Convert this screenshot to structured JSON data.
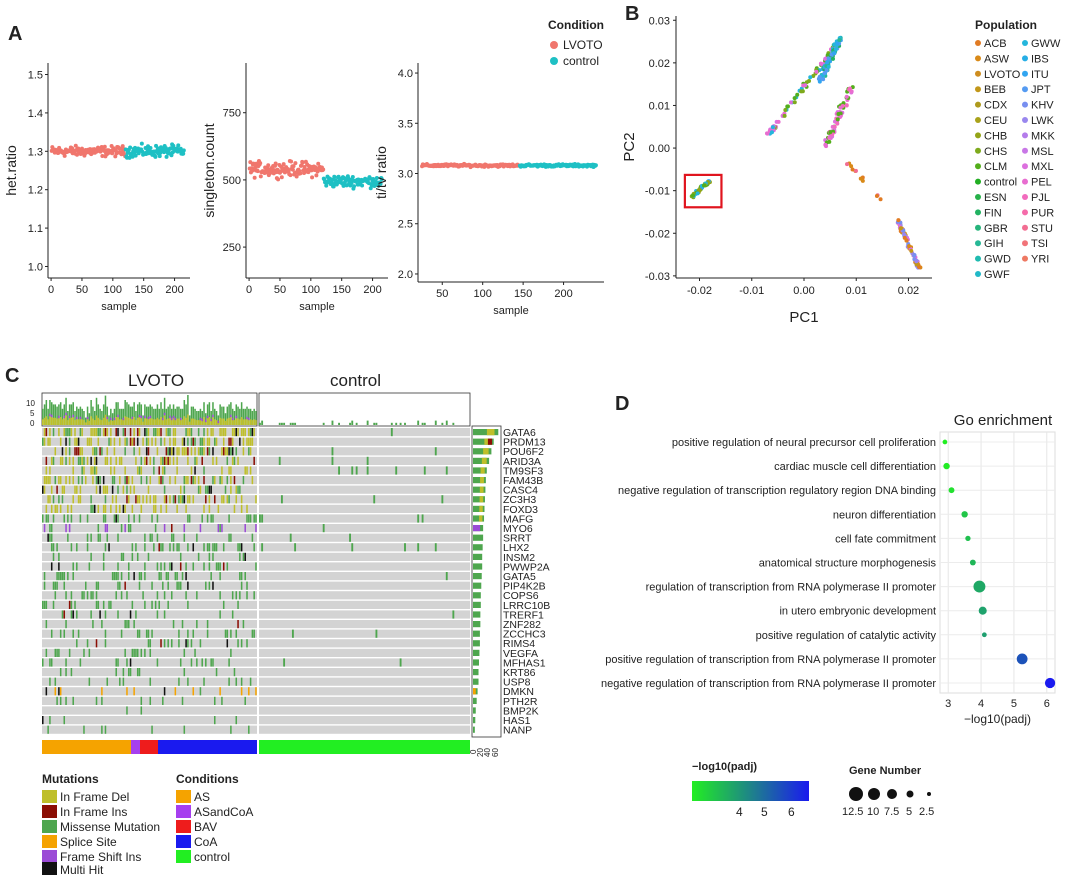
{
  "panel_labels": {
    "a": "A",
    "b": "B",
    "c": "C",
    "d": "D"
  },
  "colors": {
    "lvoto": "#F0766D",
    "control": "#1EC0C4",
    "in_frame_del": "#BFBF2A",
    "in_frame_ins": "#8B0E04",
    "missense": "#4EA64E",
    "splice": "#F5A300",
    "frame_shift": "#9B4BD6",
    "multi_hit": "#111111",
    "AS": "#F5A300",
    "ASandCoA": "#A63FEF",
    "BAV": "#EE1C1C",
    "CoA": "#1A1AEF",
    "control_bar": "#22EE22"
  },
  "panel_a": {
    "legend": {
      "title": "Condition",
      "items": [
        "LVOTO",
        "control"
      ]
    },
    "xlabel": "sample"
  },
  "panel_b": {
    "legend_title": "Population",
    "populations_col1": [
      "ACB",
      "ASW",
      "LVOTO",
      "BEB",
      "CDX",
      "CEU",
      "CHB",
      "CHS",
      "CLM",
      "control",
      "ESN",
      "FIN",
      "GBR",
      "GIH",
      "GWD",
      "GWF"
    ],
    "populations_col2": [
      "GWW",
      "IBS",
      "ITU",
      "JPT",
      "KHV",
      "LWK",
      "MKK",
      "MSL",
      "MXL",
      "PEL",
      "PJL",
      "PUR",
      "STU",
      "TSI",
      "YRI"
    ],
    "colors_col1": [
      "#E17B23",
      "#D98A18",
      "#CE8D1F",
      "#C29719",
      "#AE9A1D",
      "#A9A21A",
      "#94A417",
      "#7EAA1C",
      "#53AE1B",
      "#22AE23",
      "#27B14A",
      "#22B262",
      "#26B47B",
      "#27B896",
      "#20BBB0",
      "#21B9C8"
    ],
    "colors_col2": [
      "#24B6DC",
      "#26AEE6",
      "#31A5F0",
      "#559BF2",
      "#788FF0",
      "#9987EE",
      "#B47CEB",
      "#C877E6",
      "#DC70DE",
      "#E86DD0",
      "#F26BBD",
      "#F56BAA",
      "#F26D92",
      "#F17379",
      "#EE7963"
    ]
  },
  "panel_c": {
    "title_left": "LVOTO",
    "title_right": "control",
    "top_axis_ticks": [
      "10",
      "5",
      "0"
    ],
    "genes": [
      "GATA6",
      "PRDM13",
      "POU6F2",
      "ARID3A",
      "TM9SF3",
      "FAM43B",
      "CASC4",
      "ZC3H3",
      "FOXD3",
      "MAFG",
      "MYO6",
      "SRRT",
      "LHX2",
      "INSM2",
      "PWWP2A",
      "GATA5",
      "PIP4K2B",
      "COPS6",
      "LRRC10B",
      "TRERF1",
      "ZNF282",
      "ZCCHC3",
      "RIMS4",
      "VEGFA",
      "MFHAS1",
      "KRT86",
      "USP8",
      "DMKN",
      "PTH2R",
      "BMP2K",
      "HAS1",
      "NANP"
    ],
    "side_axis_ticks": [
      "0",
      "20",
      "40",
      "60"
    ],
    "mutations_legend": {
      "title": "Mutations",
      "items": [
        "In Frame Del",
        "In Frame Ins",
        "Missense Mutation",
        "Splice Site",
        "Frame Shift Ins",
        "Multi Hit"
      ]
    },
    "conditions_legend": {
      "title": "Conditions",
      "items": [
        "AS",
        "ASandCoA",
        "BAV",
        "CoA",
        "control"
      ]
    }
  },
  "chart_data": [
    {
      "type": "scatter",
      "title": "",
      "xlabel": "sample",
      "ylabel": "het.ratio",
      "xlim": [
        -5,
        225
      ],
      "ylim": [
        0.97,
        1.53
      ],
      "xticks": [
        0,
        50,
        100,
        150,
        200
      ],
      "yticks": [
        1.0,
        1.1,
        1.2,
        1.3,
        1.4,
        1.5
      ],
      "yticklabels": [
        "1.0",
        "1.1",
        "1.2",
        "1.3",
        "1.4",
        "1.5"
      ],
      "series": [
        {
          "name": "LVOTO",
          "x_range": [
            1,
            120
          ],
          "y_center": 1.3,
          "y_spread": 0.012
        },
        {
          "name": "control",
          "x_range": [
            121,
            215
          ],
          "y_center": 1.3,
          "y_spread": 0.014
        }
      ]
    },
    {
      "type": "scatter",
      "title": "",
      "xlabel": "sample",
      "ylabel": "singleton.count",
      "xlim": [
        -5,
        225
      ],
      "ylim": [
        135,
        935
      ],
      "xticks": [
        0,
        50,
        100,
        150,
        200
      ],
      "yticks": [
        250,
        500,
        750
      ],
      "yticklabels": [
        "250",
        "500",
        "750"
      ],
      "series": [
        {
          "name": "LVOTO",
          "x_range": [
            1,
            120
          ],
          "y_center": 540,
          "y_spread": 25
        },
        {
          "name": "control",
          "x_range": [
            121,
            215
          ],
          "y_center": 495,
          "y_spread": 20
        }
      ]
    },
    {
      "type": "scatter",
      "title": "",
      "xlabel": "sample",
      "ylabel": "ti/tv ratio",
      "xlim": [
        20,
        250
      ],
      "ylim": [
        1.92,
        4.1
      ],
      "xticks": [
        50,
        100,
        150,
        200
      ],
      "yticks": [
        2.0,
        2.5,
        3.0,
        3.5,
        4.0
      ],
      "yticklabels": [
        "2.0",
        "2.5",
        "3.0",
        "3.5",
        "4.0"
      ],
      "series": [
        {
          "name": "LVOTO",
          "x_range": [
            25,
            145
          ],
          "y_center": 3.08,
          "y_spread": 0.012
        },
        {
          "name": "control",
          "x_range": [
            146,
            240
          ],
          "y_center": 3.08,
          "y_spread": 0.012
        }
      ]
    },
    {
      "type": "scatter",
      "title": "",
      "xlabel": "PC1",
      "ylabel": "PC2",
      "xlim": [
        -0.0245,
        0.0245
      ],
      "ylim": [
        -0.0305,
        0.031
      ],
      "xticks": [
        -0.02,
        -0.01,
        0.0,
        0.01,
        0.02
      ],
      "xticklabels": [
        "-0.02",
        "-0.01",
        "0.00",
        "0.01",
        "0.02"
      ],
      "yticks": [
        -0.03,
        -0.02,
        -0.01,
        0.0,
        0.01,
        0.02,
        0.03
      ],
      "yticklabels": [
        "-0.03",
        "-0.02",
        "-0.01",
        "0.00",
        "0.01",
        "0.02",
        "0.03"
      ],
      "highlight_box": {
        "x": [
          -0.0228,
          -0.0158
        ],
        "y": [
          -0.0139,
          -0.0063
        ]
      },
      "clusters": [
        {
          "name": "LVOTO/control cluster",
          "x": [
            -0.0215,
            -0.018
          ],
          "y": [
            -0.0115,
            -0.0075
          ],
          "colors": [
            "#53AE1B",
            "#7EAA1C",
            "#24B6DC",
            "#94A417"
          ],
          "n": 40
        },
        {
          "name": "African arm",
          "x": [
            0.018,
            0.022
          ],
          "y": [
            -0.028,
            -0.018
          ],
          "colors": [
            "#E17B23",
            "#D98A18",
            "#9987EE",
            "#788FF0",
            "#DC70DE"
          ],
          "n": 60
        },
        {
          "name": "East Asian arm",
          "x": [
            0.003,
            0.008
          ],
          "y": [
            0.012,
            0.026
          ],
          "colors": [
            "#24B6DC",
            "#31A5F0",
            "#22B262",
            "#27B896"
          ],
          "n": 80
        },
        {
          "name": "Admixed arm",
          "x": [
            -0.006,
            0.005
          ],
          "y": [
            -0.001,
            0.016
          ],
          "colors": [
            "#DC70DE",
            "#53AE1B",
            "#E86DD0",
            "#7EAA1C"
          ],
          "n": 50
        },
        {
          "name": "South/Central",
          "x": [
            0.005,
            0.009
          ],
          "y": [
            0.0,
            0.014
          ],
          "colors": [
            "#E86DD0",
            "#F26BBD",
            "#53AE1B"
          ],
          "n": 40
        }
      ]
    },
    {
      "type": "scatter",
      "title": "Go enrichment",
      "xlabel": "−log10(padj)",
      "ylabel": "",
      "xlim": [
        2.75,
        6.25
      ],
      "xticks": [
        3,
        4,
        5,
        6
      ],
      "xticklabels": [
        "3",
        "4",
        "5",
        "6"
      ],
      "categories": [
        "positive regulation of neural precursor cell proliferation",
        "cardiac muscle cell differentiation",
        "negative regulation of transcription regulatory region DNA binding",
        "neuron differentiation",
        "cell fate commitment",
        "anatomical structure morphogenesis",
        "regulation of transcription from RNA polymerase II promoter",
        "in utero embryonic development",
        "positive regulation of catalytic activity",
        "positive regulation of transcription from RNA polymerase II promoter",
        "negative regulation of transcription from RNA polymerase II promoter"
      ],
      "x": [
        2.9,
        2.95,
        3.1,
        3.5,
        3.6,
        3.75,
        3.95,
        4.05,
        4.1,
        5.25,
        6.1
      ],
      "gene_number": [
        2.5,
        4,
        3.5,
        4,
        3,
        3.5,
        9,
        5.5,
        2.5,
        8,
        7.5
      ],
      "color_legend": {
        "title": "−log10(padj)",
        "ticks": [
          "4",
          "5",
          "6"
        ]
      },
      "size_legend": {
        "title": "Gene Number",
        "labels": [
          "12.5",
          "10",
          "7.5",
          "5",
          "2.5"
        ],
        "values": [
          12.5,
          10,
          7.5,
          5,
          2.5
        ]
      }
    }
  ]
}
